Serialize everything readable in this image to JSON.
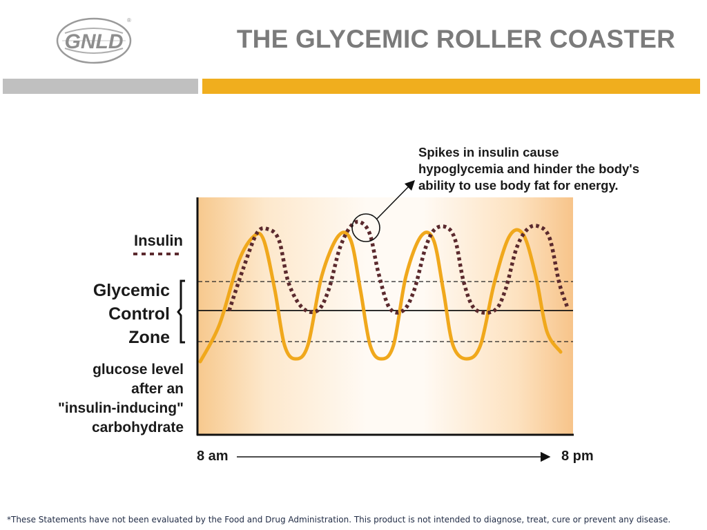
{
  "header": {
    "logo_text": "GNLD",
    "logo_mark": "®",
    "title": "THE GLYCEMIC ROLLER COASTER"
  },
  "diagram": {
    "legend_insulin": "Insulin",
    "zone_label": [
      "Glycemic",
      "Control",
      "Zone"
    ],
    "glucose_label": [
      "glucose level",
      "after an",
      "\"insulin-inducing\"",
      "carbohydrate"
    ],
    "callout": [
      "Spikes in insulin cause",
      "hypoglycemia and hinder the body's",
      "ability to use body fat for energy."
    ],
    "time_start": "8 am",
    "time_end": "8 pm",
    "colors": {
      "glucose_curve": "#f0a81c",
      "insulin_curve": "#5b2a2e",
      "panel_edge": "#f7c98e",
      "panel_center": "#fffaf4"
    }
  },
  "footer": {
    "disclaimer": "*These Statements have not been evaluated by the Food and Drug Administration. This product is not intended to diagnose, treat, cure or prevent any disease."
  }
}
